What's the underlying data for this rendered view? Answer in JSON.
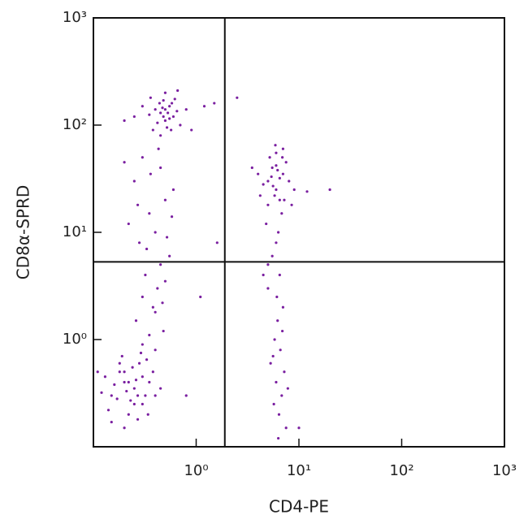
{
  "chart_data": {
    "type": "scatter",
    "x_label": "CD4-PE",
    "y_label": "CD8α-SPRD",
    "log_x": true,
    "log_y": true,
    "color": "#7a1fa0",
    "xlim": [
      0.1,
      1000
    ],
    "ylim": [
      0.1,
      1000
    ],
    "xticks": [
      {
        "value": 1,
        "label": "10⁰"
      },
      {
        "value": 10,
        "label": "10¹"
      },
      {
        "value": 100,
        "label": "10²"
      },
      {
        "value": 1000,
        "label": "10³"
      }
    ],
    "yticks": [
      {
        "value": 1,
        "label": "10⁰"
      },
      {
        "value": 10,
        "label": "10¹"
      },
      {
        "value": 100,
        "label": "10²"
      },
      {
        "value": 1000,
        "label": "10³"
      }
    ],
    "gate_x": 1.9,
    "gate_y": 5.3,
    "x": [
      0.15,
      0.2,
      0.25,
      0.18,
      0.3,
      0.22,
      0.13,
      0.28,
      0.35,
      0.17,
      0.24,
      0.32,
      0.2,
      0.27,
      0.14,
      0.38,
      0.19,
      0.26,
      0.21,
      0.16,
      0.3,
      0.23,
      0.12,
      0.34,
      0.29,
      0.18,
      0.4,
      0.25,
      0.2,
      0.15,
      0.33,
      0.22,
      0.45,
      0.11,
      0.27,
      0.45,
      0.5,
      0.55,
      0.4,
      0.6,
      0.48,
      0.35,
      0.52,
      0.58,
      0.42,
      0.65,
      0.5,
      0.38,
      0.47,
      0.55,
      0.3,
      0.7,
      0.45,
      0.62,
      0.53,
      0.25,
      0.8,
      0.44,
      0.57,
      0.36,
      0.5,
      1.2,
      0.2,
      0.66,
      0.48,
      0.3,
      0.45,
      0.25,
      0.5,
      0.35,
      0.4,
      0.28,
      0.55,
      0.32,
      0.42,
      0.38,
      0.26,
      0.48,
      0.3,
      0.45,
      0.22,
      0.6,
      0.36,
      0.5,
      0.4,
      0.33,
      0.27,
      0.52,
      0.43,
      0.2,
      0.58,
      0.35,
      0.47,
      0.3,
      0.4,
      5,
      6,
      7,
      5.5,
      6.5,
      4.5,
      7.5,
      6,
      5,
      8,
      6.8,
      4,
      5.8,
      7,
      6.2,
      5.2,
      4.8,
      9,
      6.5,
      5.6,
      7.2,
      3.5,
      6,
      5.4,
      8.5,
      6.9,
      4.2,
      5.9,
      6.3,
      12,
      6,
      5.5,
      6.5,
      5,
      7,
      6.2,
      5.8,
      6.6,
      5.3,
      7.2,
      6,
      6.8,
      5.7,
      6.4,
      7.5,
      5,
      6.1,
      6.9,
      5.6,
      4.5,
      7.8,
      6.3,
      1.5,
      0.9,
      2.5,
      1.1,
      1.6,
      0.8,
      10,
      20
    ],
    "values": [
      0.3,
      0.4,
      0.35,
      0.5,
      0.25,
      0.2,
      0.45,
      0.6,
      0.4,
      0.28,
      0.55,
      0.3,
      0.15,
      0.18,
      0.22,
      0.5,
      0.7,
      0.42,
      0.33,
      0.38,
      0.45,
      0.27,
      0.32,
      0.2,
      0.75,
      0.6,
      0.3,
      0.25,
      0.5,
      0.17,
      0.65,
      0.4,
      0.35,
      0.5,
      0.3,
      130,
      110,
      150,
      140,
      120,
      170,
      125,
      95,
      160,
      105,
      135,
      200,
      90,
      145,
      115,
      150,
      100,
      80,
      175,
      130,
      120,
      140,
      160,
      90,
      180,
      140,
      150,
      110,
      210,
      120,
      50,
      40,
      30,
      20,
      15,
      10,
      8,
      6,
      4,
      3,
      2,
      1.5,
      1.2,
      2.5,
      5,
      12,
      25,
      35,
      3.5,
      1.8,
      7,
      18,
      9,
      60,
      45,
      14,
      1.1,
      2.2,
      0.9,
      0.8,
      30,
      25,
      35,
      40,
      20,
      28,
      45,
      55,
      18,
      30,
      15,
      35,
      22,
      60,
      38,
      50,
      12,
      25,
      32,
      27,
      20,
      40,
      42,
      33,
      18,
      50,
      22,
      65,
      10,
      24,
      8,
      6,
      4,
      3,
      2,
      1.5,
      1,
      0.8,
      0.6,
      0.5,
      0.4,
      0.3,
      0.25,
      0.2,
      0.15,
      5,
      2.5,
      1.2,
      0.7,
      4,
      0.35,
      0.12,
      160,
      90,
      180,
      2.5,
      8,
      0.3,
      0.15,
      25
    ]
  }
}
